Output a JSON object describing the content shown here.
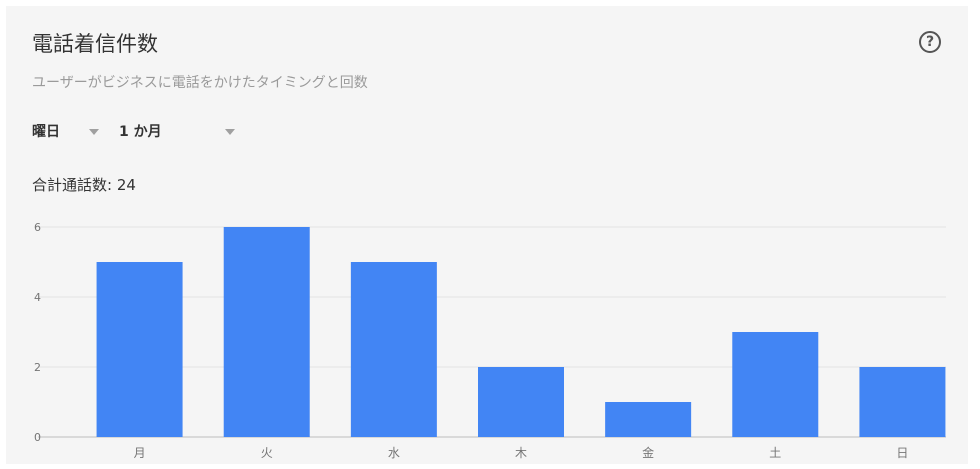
{
  "card": {
    "title": "電話着信件数",
    "help_icon_glyph": "?",
    "subtitle": "ユーザーがビジネスに電話をかけたタイミングと回数",
    "period_select": {
      "label": "曜日",
      "icon": "chevron-down-icon"
    },
    "range_select": {
      "label": "1 か月",
      "icon": "chevron-down-icon"
    },
    "total_calls": "合計通話数: 24"
  },
  "colors": {
    "bar": "#4285f4",
    "grid": "#e2e2e2",
    "axis": "#bdbdbd",
    "tick_text": "#757575"
  },
  "chart_data": {
    "type": "bar",
    "categories": [
      "月",
      "火",
      "水",
      "木",
      "金",
      "土",
      "日"
    ],
    "values": [
      5,
      6,
      5,
      2,
      1,
      3,
      2
    ],
    "ylim": [
      0,
      6
    ],
    "yticks": [
      "0",
      "2",
      "4",
      "6"
    ],
    "title": "",
    "xlabel": "",
    "ylabel": "",
    "grid": true
  }
}
